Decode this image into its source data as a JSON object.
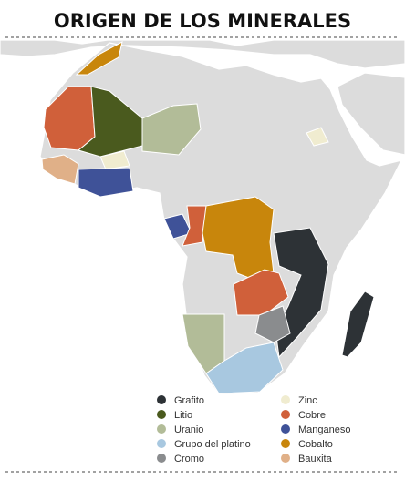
{
  "header": {
    "title": "ORIGEN DE LOS MINERALES"
  },
  "legend": [
    {
      "name": "Grafito",
      "color": "#2d3236"
    },
    {
      "name": "Litio",
      "color": "#4a5a1e"
    },
    {
      "name": "Uranio",
      "color": "#b2bc98"
    },
    {
      "name": "Grupo del platino",
      "color": "#a8c8e0"
    },
    {
      "name": "Cromo",
      "color": "#8a8c8e"
    },
    {
      "name": "Zinc",
      "color": "#f0ecd0"
    },
    {
      "name": "Cobre",
      "color": "#d0603a"
    },
    {
      "name": "Manganeso",
      "color": "#3f5298"
    },
    {
      "name": "Cobalto",
      "color": "#c8860c"
    },
    {
      "name": "Bauxita",
      "color": "#e0b088"
    }
  ]
}
